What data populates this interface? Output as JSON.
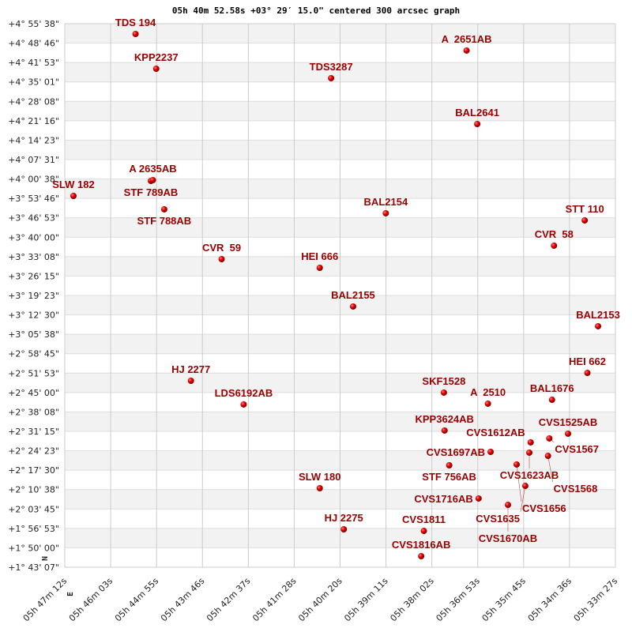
{
  "chart_data": {
    "type": "scatter",
    "title": "05h 40m 52.58s +03° 29′ 15.0\" centered 300 arcsec graph",
    "xlabel": "",
    "ylabel": "",
    "x_axis": "right ascension (decreasing to the right)",
    "xlim": [
      "05h 47m 12s",
      "05h 33m 27s"
    ],
    "ylim": [
      "+1° 43' 07\"",
      "+4° 55' 38\""
    ],
    "grid": true,
    "compass": {
      "north": "N",
      "east": "E"
    },
    "x_ticks": [
      "05h 47m 12s",
      "05h 46m 03s",
      "05h 44m 55s",
      "05h 43m 46s",
      "05h 42m 37s",
      "05h 41m 28s",
      "05h 40m 20s",
      "05h 39m 11s",
      "05h 38m 02s",
      "05h 36m 53s",
      "05h 35m 45s",
      "05h 34m 36s",
      "05h 33m 27s"
    ],
    "y_ticks": [
      "+4° 55' 38\"",
      "+4° 48' 46\"",
      "+4° 41' 53\"",
      "+4° 35' 01\"",
      "+4° 28' 08\"",
      "+4° 21' 16\"",
      "+4° 14' 23\"",
      "+4° 07' 31\"",
      "+4° 00' 38\"",
      "+3° 53' 46\"",
      "+3° 46' 53\"",
      "+3° 40' 00\"",
      "+3° 33' 08\"",
      "+3° 26' 15\"",
      "+3° 19' 23\"",
      "+3° 12' 30\"",
      "+3° 05' 38\"",
      "+2° 58' 45\"",
      "+2° 51' 53\"",
      "+2° 45' 00\"",
      "+2° 38' 08\"",
      "+2° 31' 15\"",
      "+2° 24' 23\"",
      "+2° 17' 30\"",
      "+2° 10' 38\"",
      "+2° 03' 45\"",
      "+1° 56' 53\"",
      "+1° 50' 00\"",
      "+1° 43' 07\""
    ],
    "colors": {
      "label": "#990000",
      "point": "#dd0000",
      "band": "#f2f2f2",
      "grid": "#cccccc"
    },
    "points": [
      {
        "name": "TDS 194",
        "ra": "05h 45m 26s",
        "dec": "+4° 52' 00\""
      },
      {
        "name": "A  2651AB",
        "ra": "05h 37m 10s",
        "dec": "+4° 46' 08\""
      },
      {
        "name": "KPP2237",
        "ra": "05h 44m 55s",
        "dec": "+4° 39' 41\""
      },
      {
        "name": "TDS3287",
        "ra": "05h 40m 33s",
        "dec": "+4° 36' 20\""
      },
      {
        "name": "BAL2641",
        "ra": "05h 36m 54s",
        "dec": "+4° 20' 06\""
      },
      {
        "name": "STF 789AB",
        "ra": "05h 45m 03s",
        "dec": "+3° 59' 57\""
      },
      {
        "name": "A 2635AB",
        "ra": "05h 45m 00s",
        "dec": "+4° 00' 14\""
      },
      {
        "name": "SLW 182",
        "ra": "05h 46m 59s",
        "dec": "+3° 54' 38\""
      },
      {
        "name": "STF 788AB",
        "ra": "05h 44m 43s",
        "dec": "+3° 49' 53\""
      },
      {
        "name": "BAL2154",
        "ra": "05h 39m 11s",
        "dec": "+3° 48' 29\""
      },
      {
        "name": "STT 110",
        "ra": "05h 34m 13s",
        "dec": "+3° 45' 58\""
      },
      {
        "name": "CVR  58",
        "ra": "05h 34m 59s",
        "dec": "+3° 37' 01\""
      },
      {
        "name": "CVR  59",
        "ra": "05h 43m 17s",
        "dec": "+3° 32' 15\""
      },
      {
        "name": "HEI 666",
        "ra": "05h 40m 50s",
        "dec": "+3° 29' 10\""
      },
      {
        "name": "BAL2155",
        "ra": "05h 40m 00s",
        "dec": "+3° 15' 28\""
      },
      {
        "name": "BAL2153",
        "ra": "05h 33m 53s",
        "dec": "+3° 08' 28\""
      },
      {
        "name": "HEI 662",
        "ra": "05h 34m 09s",
        "dec": "+2° 51' 57\""
      },
      {
        "name": "HJ 2277",
        "ra": "05h 44m 03s",
        "dec": "+2° 49' 09\""
      },
      {
        "name": "SKF1528",
        "ra": "05h 37m 44s",
        "dec": "+2° 44' 58\""
      },
      {
        "name": "BAL1676",
        "ra": "05h 35m 02s",
        "dec": "+2° 42' 26\""
      },
      {
        "name": "A  2510",
        "ra": "05h 36m 38s",
        "dec": "+2° 41' 03\""
      },
      {
        "name": "LDS6192AB",
        "ra": "05h 42m 44s",
        "dec": "+2° 40' 46\""
      },
      {
        "name": "KPP3624AB",
        "ra": "05h 37m 43s",
        "dec": "+2° 31' 32\""
      },
      {
        "name": "CVS1525AB",
        "ra": "05h 34m 38s",
        "dec": "+2° 30' 25\""
      },
      {
        "name": "CVS1567",
        "ra": "05h 35m 06s",
        "dec": "+2° 28' 44\""
      },
      {
        "name": "CVS1612AB",
        "ra": "05h 35m 34s",
        "dec": "+2° 27' 20\""
      },
      {
        "name": "CVS1697AB",
        "ra": "05h 36m 34s",
        "dec": "+2° 23' 58\""
      },
      {
        "name": "CVS1623AB",
        "ra": "05h 35m 36s",
        "dec": "+2° 23' 42\""
      },
      {
        "name": "CVS1568",
        "ra": "05h 35m 08s",
        "dec": "+2° 22' 34\""
      },
      {
        "name": "CVS1656",
        "ra": "05h 35m 55s",
        "dec": "+2° 19' 30\""
      },
      {
        "name": "STF 756AB",
        "ra": "05h 37m 36s",
        "dec": "+2° 19' 13\""
      },
      {
        "name": "CVS1635",
        "ra": "05h 35m 42s",
        "dec": "+2° 11' 56\""
      },
      {
        "name": "SLW 180",
        "ra": "05h 40m 50s",
        "dec": "+2° 11' 06\""
      },
      {
        "name": "CVS1716AB",
        "ra": "05h 36m 52s",
        "dec": "+2° 07' 28\""
      },
      {
        "name": "CVS1670AB",
        "ra": "05h 36m 08s",
        "dec": "+2° 05' 13\""
      },
      {
        "name": "HJ 2275",
        "ra": "05h 40m 14s",
        "dec": "+1° 56' 33\""
      },
      {
        "name": "CVS1811",
        "ra": "05h 38m 14s",
        "dec": "+1° 55' 59\""
      },
      {
        "name": "CVS1816AB",
        "ra": "05h 38m 18s",
        "dec": "+1° 47' 02\""
      }
    ]
  }
}
